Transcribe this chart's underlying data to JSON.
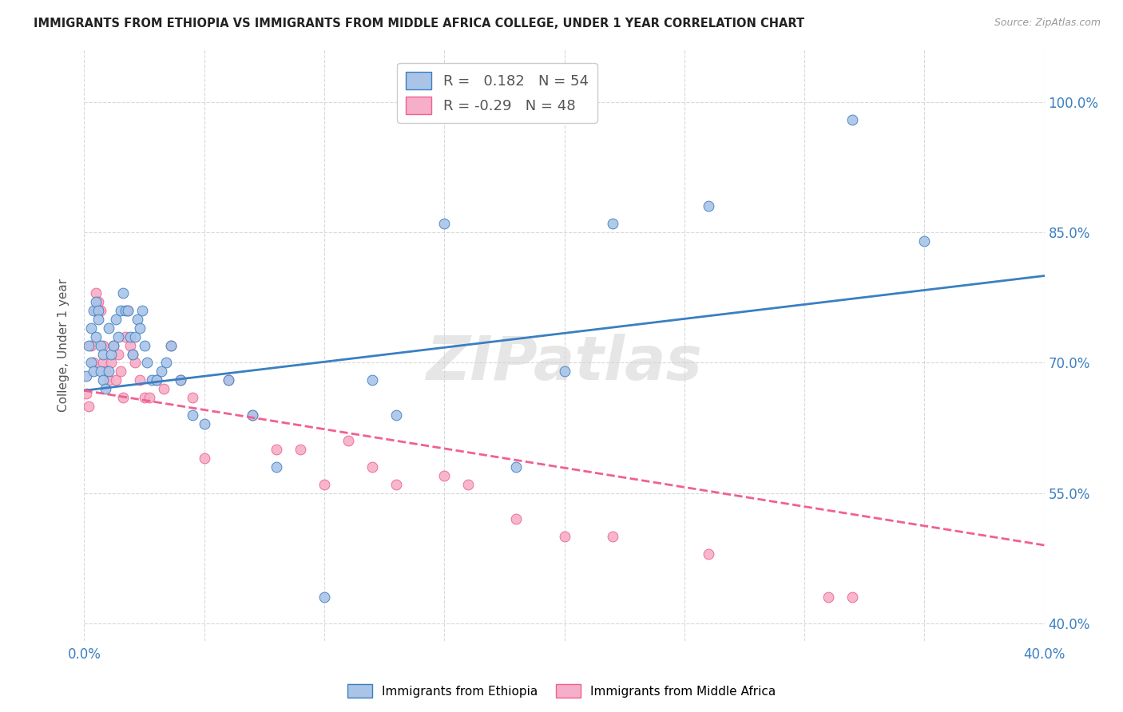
{
  "title": "IMMIGRANTS FROM ETHIOPIA VS IMMIGRANTS FROM MIDDLE AFRICA COLLEGE, UNDER 1 YEAR CORRELATION CHART",
  "source": "Source: ZipAtlas.com",
  "ylabel": "College, Under 1 year",
  "ylabel_right_ticks": [
    "40.0%",
    "55.0%",
    "70.0%",
    "85.0%",
    "100.0%"
  ],
  "ylabel_right_values": [
    0.4,
    0.55,
    0.7,
    0.85,
    1.0
  ],
  "xlim": [
    0.0,
    0.4
  ],
  "ylim": [
    0.38,
    1.06
  ],
  "r_ethiopia": 0.182,
  "n_ethiopia": 54,
  "r_middle_africa": -0.29,
  "n_middle_africa": 48,
  "watermark": "ZIPatlas",
  "legend_ethiopia_label": "Immigrants from Ethiopia",
  "legend_middle_africa_label": "Immigrants from Middle Africa",
  "color_ethiopia": "#aac4e8",
  "color_middle_africa": "#f5afc8",
  "line_color_ethiopia": "#3a7fc1",
  "line_color_middle_africa": "#f06090",
  "background_color": "#ffffff",
  "grid_color": "#d8d8d8",
  "ethiopia_x": [
    0.001,
    0.002,
    0.003,
    0.003,
    0.004,
    0.004,
    0.005,
    0.005,
    0.006,
    0.006,
    0.007,
    0.007,
    0.008,
    0.008,
    0.009,
    0.01,
    0.01,
    0.011,
    0.012,
    0.013,
    0.014,
    0.015,
    0.016,
    0.017,
    0.018,
    0.019,
    0.02,
    0.021,
    0.022,
    0.023,
    0.024,
    0.025,
    0.026,
    0.028,
    0.03,
    0.032,
    0.034,
    0.036,
    0.04,
    0.045,
    0.05,
    0.06,
    0.07,
    0.08,
    0.1,
    0.12,
    0.13,
    0.15,
    0.18,
    0.2,
    0.22,
    0.26,
    0.32,
    0.35
  ],
  "ethiopia_y": [
    0.685,
    0.72,
    0.7,
    0.74,
    0.69,
    0.76,
    0.73,
    0.77,
    0.76,
    0.75,
    0.72,
    0.69,
    0.68,
    0.71,
    0.67,
    0.69,
    0.74,
    0.71,
    0.72,
    0.75,
    0.73,
    0.76,
    0.78,
    0.76,
    0.76,
    0.73,
    0.71,
    0.73,
    0.75,
    0.74,
    0.76,
    0.72,
    0.7,
    0.68,
    0.68,
    0.69,
    0.7,
    0.72,
    0.68,
    0.64,
    0.63,
    0.68,
    0.64,
    0.58,
    0.43,
    0.68,
    0.64,
    0.86,
    0.58,
    0.69,
    0.86,
    0.88,
    0.98,
    0.84
  ],
  "middle_africa_x": [
    0.001,
    0.002,
    0.003,
    0.004,
    0.005,
    0.005,
    0.006,
    0.007,
    0.008,
    0.008,
    0.009,
    0.01,
    0.011,
    0.012,
    0.013,
    0.014,
    0.015,
    0.016,
    0.017,
    0.018,
    0.019,
    0.02,
    0.021,
    0.023,
    0.025,
    0.027,
    0.03,
    0.033,
    0.036,
    0.04,
    0.045,
    0.05,
    0.06,
    0.07,
    0.08,
    0.09,
    0.1,
    0.11,
    0.12,
    0.13,
    0.15,
    0.16,
    0.18,
    0.2,
    0.22,
    0.26,
    0.31,
    0.32
  ],
  "middle_africa_y": [
    0.665,
    0.65,
    0.72,
    0.7,
    0.76,
    0.78,
    0.77,
    0.76,
    0.72,
    0.7,
    0.69,
    0.68,
    0.7,
    0.72,
    0.68,
    0.71,
    0.69,
    0.66,
    0.73,
    0.76,
    0.72,
    0.71,
    0.7,
    0.68,
    0.66,
    0.66,
    0.68,
    0.67,
    0.72,
    0.68,
    0.66,
    0.59,
    0.68,
    0.64,
    0.6,
    0.6,
    0.56,
    0.61,
    0.58,
    0.56,
    0.57,
    0.56,
    0.52,
    0.5,
    0.5,
    0.48,
    0.43,
    0.43
  ],
  "eth_trend_x0": 0.0,
  "eth_trend_y0": 0.668,
  "eth_trend_x1": 0.4,
  "eth_trend_y1": 0.8,
  "mid_trend_x0": 0.0,
  "mid_trend_y0": 0.668,
  "mid_trend_x1": 0.4,
  "mid_trend_y1": 0.49
}
